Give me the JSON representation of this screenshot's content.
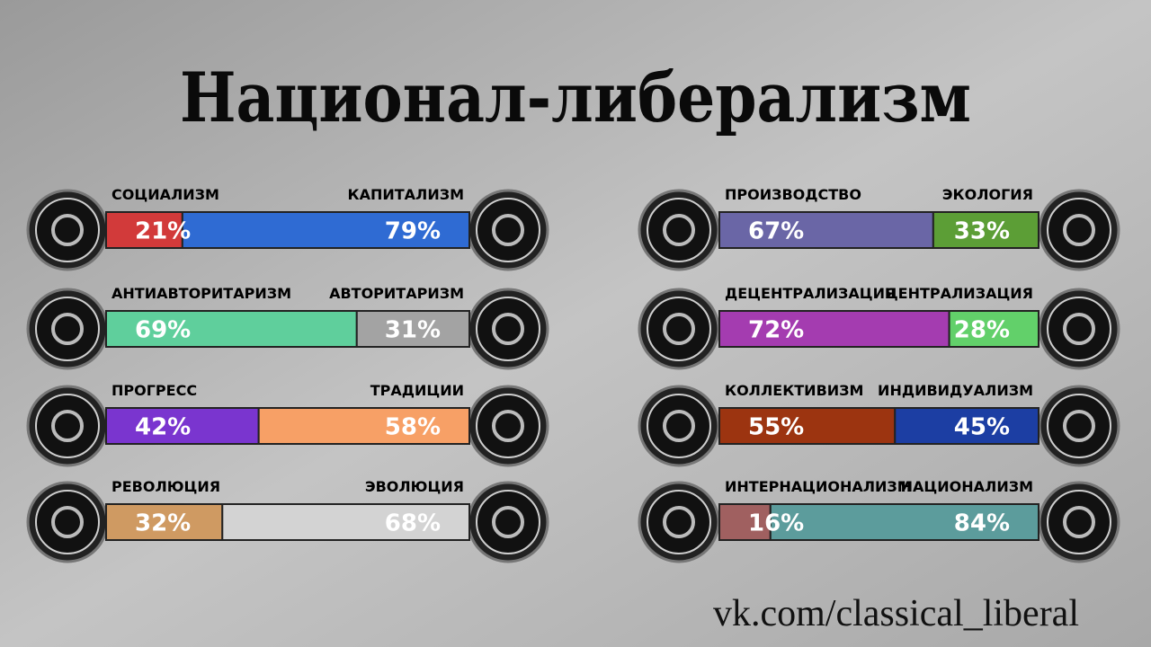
{
  "title": "Национал-либерализм",
  "axes": [
    {
      "left": "СОЦИАЛИЗМ",
      "right": "КАПИТАЛИЗМ",
      "values": [
        21,
        79
      ],
      "value_labels": [
        "21%",
        "79%"
      ],
      "colors": [
        "#d23a3a",
        "#2f6bd3"
      ]
    },
    {
      "left": "АНТИАВТОРИТАРИЗМ",
      "right": "АВТОРИТАРИЗМ",
      "values": [
        69,
        31
      ],
      "value_labels": [
        "69%",
        "31%"
      ],
      "colors": [
        "#5fcf9c",
        "#a3a3a3"
      ]
    },
    {
      "left": "ПРОГРЕСС",
      "right": "ТРАДИЦИИ",
      "values": [
        42,
        58
      ],
      "value_labels": [
        "42%",
        "58%"
      ],
      "colors": [
        "#7a35cf",
        "#f7a066"
      ]
    },
    {
      "left": "РЕВОЛЮЦИЯ",
      "right": "ЭВОЛЮЦИЯ",
      "values": [
        32,
        68
      ],
      "value_labels": [
        "32%",
        "68%"
      ],
      "colors": [
        "#cf9a62",
        "#d3d3d3"
      ]
    },
    {
      "left": "ПРОИЗВОДСТВО",
      "right": "ЭКОЛОГИЯ",
      "values": [
        67,
        33
      ],
      "value_labels": [
        "67%",
        "33%"
      ],
      "colors": [
        "#6a66a6",
        "#5c9e36"
      ]
    },
    {
      "left": "ДЕЦЕНТРАЛИЗАЦИЯ",
      "right": "ЦЕНТРАЛИЗАЦИЯ",
      "values": [
        72,
        28
      ],
      "value_labels": [
        "72%",
        "28%"
      ],
      "colors": [
        "#a43cb0",
        "#62d06a"
      ]
    },
    {
      "left": "КОЛЛЕКТИВИЗМ",
      "right": "ИНДИВИДУАЛИЗМ",
      "values": [
        55,
        45
      ],
      "value_labels": [
        "55%",
        "45%"
      ],
      "colors": [
        "#9c3410",
        "#1c3ea3"
      ]
    },
    {
      "left": "ИНТЕРНАЦИОНАЛИЗМ",
      "right": "НАЦИОНАЛИЗМ",
      "values": [
        16,
        84
      ],
      "value_labels": [
        "16%",
        "84%"
      ],
      "colors": [
        "#a06060",
        "#5c9c9c"
      ]
    }
  ],
  "footer": "vk.com/classical_liberal"
}
